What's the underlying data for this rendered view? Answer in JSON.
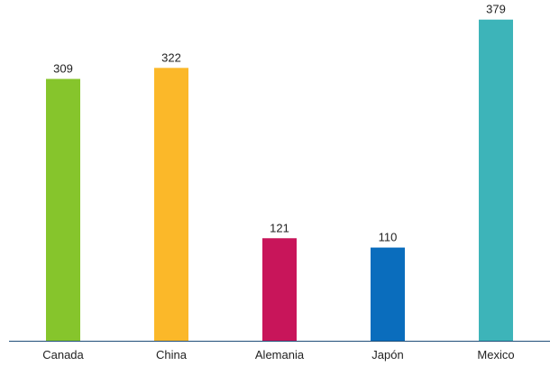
{
  "chart_data": {
    "type": "bar",
    "categories": [
      "Canada",
      "China",
      "Alemania",
      "Japón",
      "Mexico"
    ],
    "values": [
      309,
      322,
      121,
      110,
      379
    ],
    "colors": [
      "#86c52c",
      "#fbb829",
      "#c8155a",
      "#0a6dbd",
      "#3db4b9"
    ],
    "ylim": [
      0,
      400
    ],
    "grid": false,
    "legend": "none",
    "data_labels": true,
    "axis_color": "#1f4e79"
  }
}
